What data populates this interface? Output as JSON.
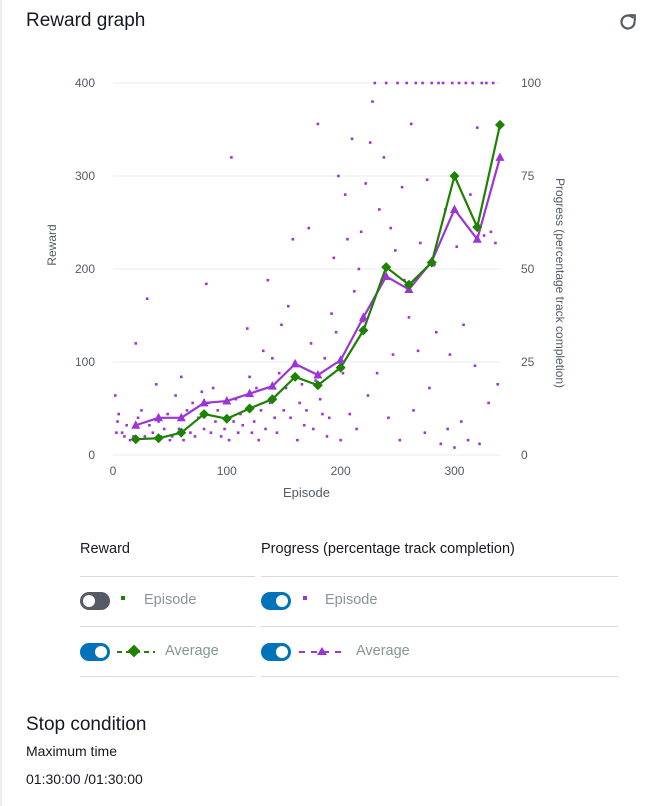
{
  "header": {
    "title": "Reward graph",
    "refresh_icon": "refresh-icon"
  },
  "colors": {
    "reward": "#1d8102",
    "progress": "#9d35d6",
    "toggle_on": "#0073bb",
    "toggle_off": "#545b64",
    "grid": "#e9ebed"
  },
  "chart_data": {
    "type": "scatter+line",
    "xlabel": "Episode",
    "ylabel_left": "Reward",
    "ylabel_right": "Progress (percentage track completion)",
    "x_ticks": [
      "0",
      "100",
      "200",
      "300"
    ],
    "y_left_ticks": [
      "0",
      "100",
      "200",
      "300",
      "400"
    ],
    "y_right_ticks": [
      "0",
      "25",
      "50",
      "75",
      "100"
    ],
    "xlim": [
      0,
      340
    ],
    "ylim_left": [
      0,
      400
    ],
    "ylim_right": [
      0,
      100
    ],
    "grid": true,
    "series": [
      {
        "name": "Average",
        "legend_group": "Reward",
        "axis": "left",
        "marker": "diamond",
        "x": [
          20,
          40,
          60,
          80,
          100,
          120,
          140,
          160,
          180,
          200,
          220,
          240,
          260,
          280,
          300,
          320,
          340
        ],
        "y": [
          17,
          18,
          24,
          44,
          39,
          50,
          60,
          84,
          75,
          94,
          134,
          202,
          183,
          207,
          300,
          245,
          355
        ]
      },
      {
        "name": "Average",
        "legend_group": "Progress (percentage track completion)",
        "axis": "right",
        "marker": "triangle",
        "x": [
          20,
          40,
          60,
          80,
          100,
          120,
          140,
          160,
          180,
          200,
          220,
          240,
          260,
          280,
          300,
          320,
          340
        ],
        "y": [
          8,
          10,
          10,
          14,
          14.5,
          16.5,
          18.5,
          24.5,
          21.5,
          25.5,
          37,
          48,
          44.5,
          52,
          66,
          58,
          80
        ]
      },
      {
        "name": "Episode",
        "legend_group": "Progress (percentage track completion)",
        "axis": "right",
        "marker": "square",
        "approximate": true,
        "points": [
          [
            2,
            16
          ],
          [
            3,
            6
          ],
          [
            4,
            9
          ],
          [
            5,
            11
          ],
          [
            8,
            6
          ],
          [
            10,
            5
          ],
          [
            12,
            8
          ],
          [
            15,
            4
          ],
          [
            18,
            5
          ],
          [
            20,
            30
          ],
          [
            22,
            10
          ],
          [
            25,
            12
          ],
          [
            28,
            5
          ],
          [
            30,
            42
          ],
          [
            32,
            8
          ],
          [
            35,
            6
          ],
          [
            38,
            19
          ],
          [
            40,
            9
          ],
          [
            42,
            5
          ],
          [
            45,
            7
          ],
          [
            48,
            11
          ],
          [
            50,
            4
          ],
          [
            52,
            5
          ],
          [
            55,
            16
          ],
          [
            58,
            7
          ],
          [
            60,
            21
          ],
          [
            62,
            4
          ],
          [
            65,
            12
          ],
          [
            68,
            6
          ],
          [
            70,
            14
          ],
          [
            72,
            5
          ],
          [
            75,
            10
          ],
          [
            78,
            17
          ],
          [
            80,
            7
          ],
          [
            82,
            46
          ],
          [
            84,
            14
          ],
          [
            86,
            6
          ],
          [
            88,
            18
          ],
          [
            90,
            9
          ],
          [
            92,
            12
          ],
          [
            95,
            5
          ],
          [
            98,
            7
          ],
          [
            100,
            14
          ],
          [
            102,
            4
          ],
          [
            104,
            80
          ],
          [
            106,
            9
          ],
          [
            108,
            15
          ],
          [
            110,
            6
          ],
          [
            112,
            11
          ],
          [
            114,
            8
          ],
          [
            118,
            34
          ],
          [
            120,
            21
          ],
          [
            122,
            6
          ],
          [
            124,
            9
          ],
          [
            126,
            18
          ],
          [
            128,
            4
          ],
          [
            130,
            12
          ],
          [
            132,
            28
          ],
          [
            134,
            7
          ],
          [
            136,
            47
          ],
          [
            138,
            14
          ],
          [
            140,
            26
          ],
          [
            142,
            10
          ],
          [
            144,
            6
          ],
          [
            146,
            22
          ],
          [
            148,
            35
          ],
          [
            150,
            12
          ],
          [
            152,
            18
          ],
          [
            154,
            40
          ],
          [
            156,
            10
          ],
          [
            158,
            58
          ],
          [
            160,
            25
          ],
          [
            162,
            4
          ],
          [
            164,
            14
          ],
          [
            166,
            19
          ],
          [
            168,
            8
          ],
          [
            170,
            12
          ],
          [
            172,
            61
          ],
          [
            174,
            30
          ],
          [
            176,
            7
          ],
          [
            178,
            20
          ],
          [
            180,
            89
          ],
          [
            182,
            15
          ],
          [
            184,
            11
          ],
          [
            186,
            26
          ],
          [
            188,
            5
          ],
          [
            190,
            10
          ],
          [
            192,
            38
          ],
          [
            194,
            53
          ],
          [
            196,
            33
          ],
          [
            198,
            75
          ],
          [
            200,
            4
          ],
          [
            202,
            22
          ],
          [
            204,
            70
          ],
          [
            206,
            58
          ],
          [
            208,
            11
          ],
          [
            210,
            85
          ],
          [
            212,
            44
          ],
          [
            214,
            7
          ],
          [
            216,
            50
          ],
          [
            218,
            60
          ],
          [
            220,
            36
          ],
          [
            222,
            73
          ],
          [
            224,
            16
          ],
          [
            226,
            84
          ],
          [
            228,
            95
          ],
          [
            230,
            100
          ],
          [
            232,
            22
          ],
          [
            234,
            66
          ],
          [
            236,
            47
          ],
          [
            238,
            80
          ],
          [
            240,
            100
          ],
          [
            242,
            10
          ],
          [
            244,
            61
          ],
          [
            246,
            27
          ],
          [
            248,
            55
          ],
          [
            250,
            100
          ],
          [
            252,
            4
          ],
          [
            254,
            72
          ],
          [
            256,
            47
          ],
          [
            258,
            100
          ],
          [
            260,
            37
          ],
          [
            262,
            89
          ],
          [
            264,
            12
          ],
          [
            266,
            100
          ],
          [
            268,
            28
          ],
          [
            270,
            57
          ],
          [
            272,
            100
          ],
          [
            274,
            6
          ],
          [
            276,
            74
          ],
          [
            278,
            18
          ],
          [
            280,
            100
          ],
          [
            282,
            51
          ],
          [
            284,
            33
          ],
          [
            286,
            100
          ],
          [
            288,
            3
          ],
          [
            290,
            100
          ],
          [
            292,
            66
          ],
          [
            294,
            7
          ],
          [
            296,
            27
          ],
          [
            298,
            100
          ],
          [
            300,
            2
          ],
          [
            302,
            56
          ],
          [
            304,
            100
          ],
          [
            306,
            9
          ],
          [
            308,
            35
          ],
          [
            310,
            100
          ],
          [
            312,
            4
          ],
          [
            314,
            70
          ],
          [
            316,
            100
          ],
          [
            318,
            24
          ],
          [
            320,
            88
          ],
          [
            322,
            3
          ],
          [
            324,
            100
          ],
          [
            326,
            59
          ],
          [
            328,
            100
          ],
          [
            330,
            14
          ],
          [
            332,
            60
          ],
          [
            334,
            100
          ],
          [
            336,
            57
          ],
          [
            338,
            19
          ]
        ]
      }
    ]
  },
  "legend": {
    "reward_heading": "Reward",
    "progress_heading": "Progress (percentage track completion)",
    "reward_episode": {
      "label": "Episode",
      "toggle": "off"
    },
    "reward_average": {
      "label": "Average",
      "toggle": "on"
    },
    "progress_episode": {
      "label": "Episode",
      "toggle": "on"
    },
    "progress_average": {
      "label": "Average",
      "toggle": "on"
    }
  },
  "stop_condition": {
    "title": "Stop condition",
    "label": "Maximum time",
    "value": "01:30:00 /01:30:00"
  }
}
